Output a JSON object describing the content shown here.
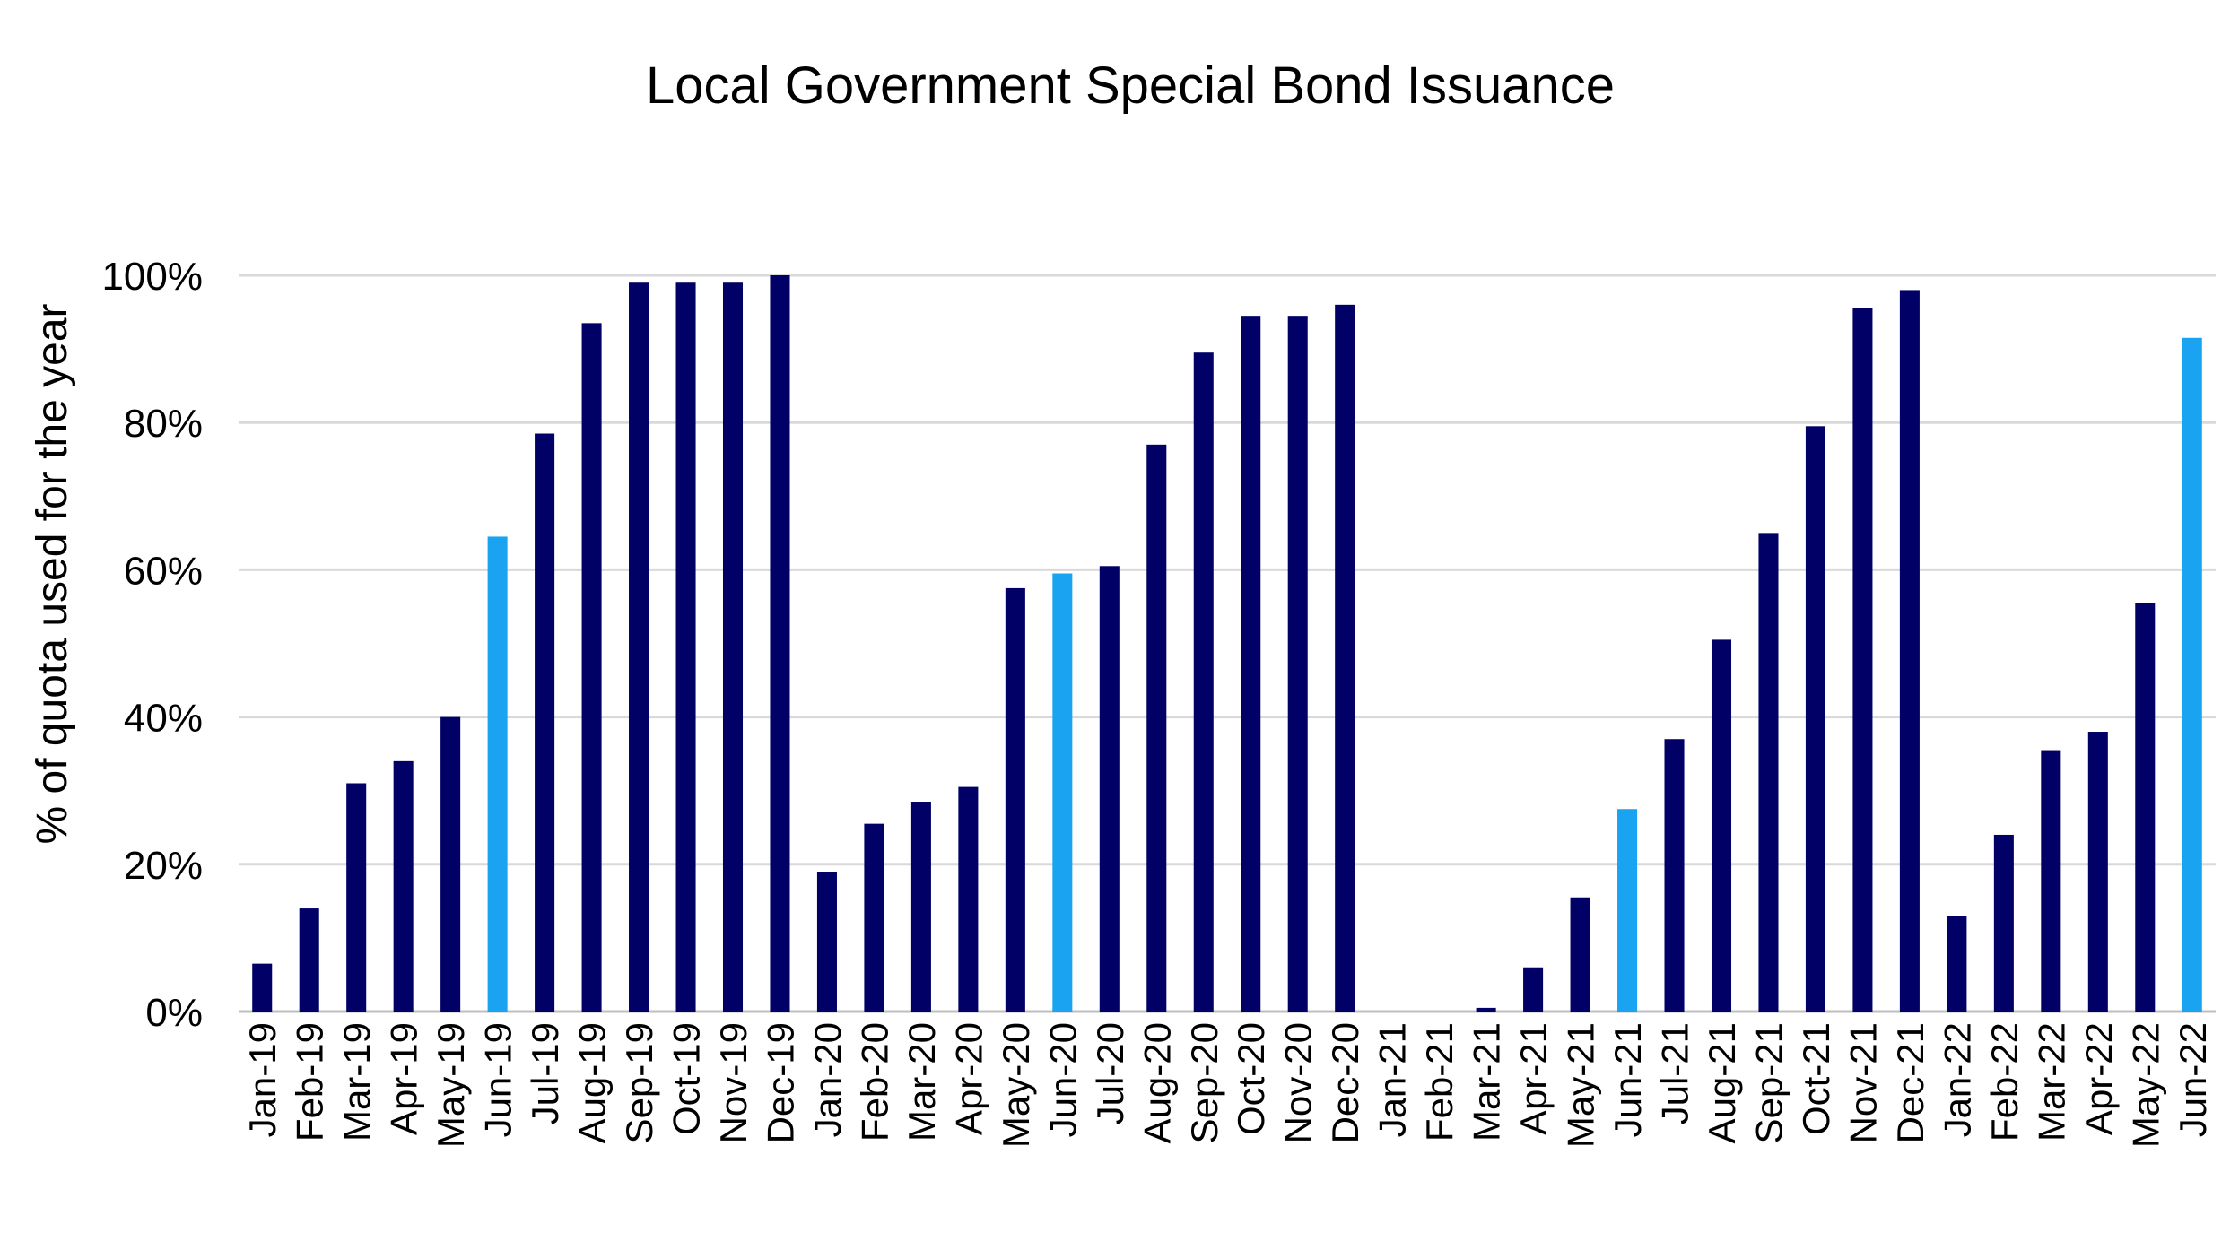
{
  "chart_data": {
    "type": "bar",
    "title": "Local Government Special Bond Issuance",
    "xlabel": "",
    "ylabel": "% of quota used for the year",
    "ylim": [
      0,
      100
    ],
    "yticks": [
      "0%",
      "20%",
      "40%",
      "60%",
      "80%",
      "100%"
    ],
    "grid": true,
    "legend": "none",
    "colors": {
      "default": "#000066",
      "highlight": "#1aa3f0"
    },
    "categories": [
      "Jan-19",
      "Feb-19",
      "Mar-19",
      "Apr-19",
      "May-19",
      "Jun-19",
      "Jul-19",
      "Aug-19",
      "Sep-19",
      "Oct-19",
      "Nov-19",
      "Dec-19",
      "Jan-20",
      "Feb-20",
      "Mar-20",
      "Apr-20",
      "May-20",
      "Jun-20",
      "Jul-20",
      "Aug-20",
      "Sep-20",
      "Oct-20",
      "Nov-20",
      "Dec-20",
      "Jan-21",
      "Feb-21",
      "Mar-21",
      "Apr-21",
      "May-21",
      "Jun-21",
      "Jul-21",
      "Aug-21",
      "Sep-21",
      "Oct-21",
      "Nov-21",
      "Dec-21",
      "Jan-22",
      "Feb-22",
      "Mar-22",
      "Apr-22",
      "May-22",
      "Jun-22"
    ],
    "values": [
      6.5,
      14,
      31,
      34,
      40,
      64.5,
      78.5,
      93.5,
      99,
      99,
      99,
      100,
      19,
      25.5,
      28.5,
      30.5,
      57.5,
      59.5,
      60.5,
      77,
      89.5,
      94.5,
      94.5,
      96,
      0,
      0,
      0.5,
      6,
      15.5,
      27.5,
      37,
      50.5,
      65,
      79.5,
      95.5,
      98,
      13,
      24,
      35.5,
      38,
      55.5,
      91.5
    ],
    "highlighted": [
      "Jun-19",
      "Jun-20",
      "Jun-21",
      "Jun-22"
    ]
  }
}
